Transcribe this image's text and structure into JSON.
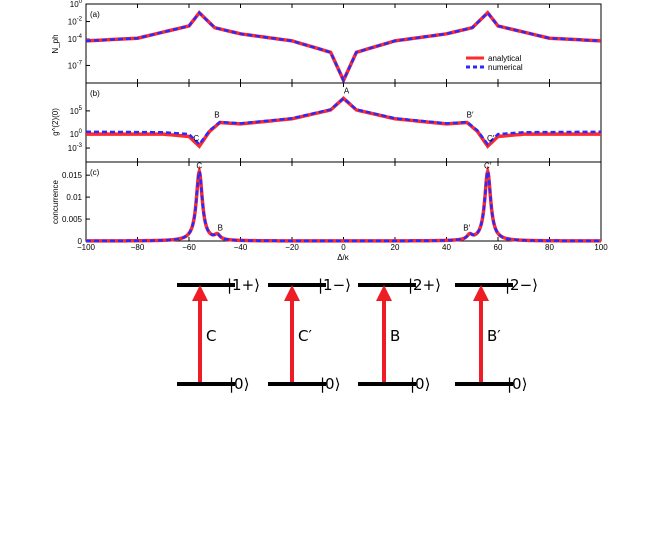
{
  "chart_data": [
    {
      "type": "line",
      "panel_label": "(a)",
      "ylabel": "N_ph",
      "yscale": "log",
      "xlim": [
        -100,
        100
      ],
      "ylim_exp": [
        -9,
        0
      ],
      "y_ticks": [
        "10^0",
        "10^-2",
        "10^-4",
        "10^-7"
      ],
      "legend_position": "right",
      "legend": [
        "analytical",
        "numerical"
      ],
      "x": [
        -100,
        -80,
        -60,
        -56,
        -50,
        -40,
        -20,
        -5,
        0,
        5,
        20,
        40,
        50,
        56,
        60,
        80,
        100
      ],
      "series": [
        {
          "name": "analytical",
          "color": "#ff2a2a",
          "values_exp": [
            -4.2,
            -3.9,
            -2.5,
            -1.0,
            -2.7,
            -3.4,
            -4.2,
            -5.5,
            -8.7,
            -5.5,
            -4.2,
            -3.4,
            -2.7,
            -1.0,
            -2.5,
            -3.9,
            -4.2
          ]
        },
        {
          "name": "numerical",
          "color": "#2a2aff",
          "values_exp": [
            -4.2,
            -3.9,
            -2.5,
            -1.0,
            -2.7,
            -3.4,
            -4.2,
            -5.5,
            -8.7,
            -5.5,
            -4.2,
            -3.4,
            -2.7,
            -1.0,
            -2.5,
            -3.9,
            -4.2
          ]
        }
      ]
    },
    {
      "type": "line",
      "panel_label": "(b)",
      "ylabel": "g^(2)(0)",
      "yscale": "log",
      "xlim": [
        -100,
        100
      ],
      "ylim_exp": [
        -6,
        11
      ],
      "y_ticks": [
        "10^5",
        "10^0",
        "10^-3"
      ],
      "annotations": [
        {
          "text": "C",
          "x": -56
        },
        {
          "text": "B",
          "x": -48
        },
        {
          "text": "A",
          "x": 0
        },
        {
          "text": "B′",
          "x": 48
        },
        {
          "text": "C′",
          "x": 56
        }
      ],
      "x": [
        -100,
        -70,
        -60,
        -56,
        -52,
        -48,
        -40,
        -20,
        -5,
        0,
        5,
        20,
        40,
        48,
        52,
        56,
        60,
        70,
        100
      ],
      "series": [
        {
          "name": "analytical",
          "color": "#ff2a2a",
          "values_exp": [
            0,
            0,
            -0.5,
            -2.6,
            0.6,
            2.5,
            2.2,
            3.3,
            5.2,
            7.7,
            5.2,
            3.3,
            2.2,
            2.5,
            0.6,
            -2.6,
            -0.5,
            0,
            0
          ]
        },
        {
          "name": "numerical",
          "color": "#2a2aff",
          "values_exp": [
            0.5,
            0.4,
            0.0,
            -2.2,
            0.8,
            2.6,
            2.3,
            3.4,
            5.3,
            7.7,
            5.3,
            3.4,
            2.3,
            2.6,
            0.8,
            -2.2,
            0.0,
            0.4,
            0.5
          ]
        }
      ]
    },
    {
      "type": "line",
      "panel_label": "(c)",
      "ylabel": "concurrence",
      "xlabel": "Δ/κ",
      "xlim": [
        -100,
        100
      ],
      "ylim": [
        0,
        0.018
      ],
      "x_ticks": [
        "−100",
        "−80",
        "−60",
        "−40",
        "−20",
        "0",
        "20",
        "40",
        "60",
        "80",
        "100"
      ],
      "y_ticks": [
        "0",
        "0.005",
        "0.01",
        "0.015"
      ],
      "annotations": [
        {
          "text": "C",
          "x": -56
        },
        {
          "text": "B",
          "x": -49
        },
        {
          "text": "B′",
          "x": 49
        },
        {
          "text": "C′",
          "x": 56
        }
      ],
      "peaks": [
        {
          "center": -56,
          "height": 0.0158,
          "width": 1.4
        },
        {
          "center": -49,
          "height": 0.0011,
          "width": 1.2
        },
        {
          "center": 49,
          "height": 0.0011,
          "width": 1.2
        },
        {
          "center": 56,
          "height": 0.0158,
          "width": 1.4
        }
      ],
      "series": [
        {
          "name": "analytical",
          "color": "#ff2a2a"
        },
        {
          "name": "numerical",
          "color": "#2a2aff"
        }
      ]
    }
  ],
  "diagram": {
    "levels": [
      {
        "upper": "|1+⟩",
        "lower": "|0⟩",
        "transition": "C"
      },
      {
        "upper": "|1−⟩",
        "lower": "|0⟩",
        "transition": "C′"
      },
      {
        "upper": "|2+⟩",
        "lower": "|0⟩",
        "transition": "B"
      },
      {
        "upper": "|2−⟩",
        "lower": "|0⟩",
        "transition": "B′"
      }
    ],
    "arrow_color": "#ee1c24"
  }
}
